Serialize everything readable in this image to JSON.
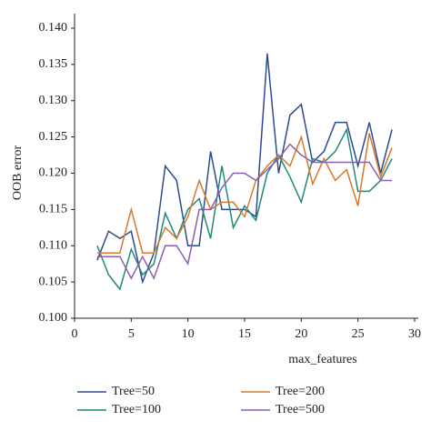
{
  "chart_data": {
    "type": "line",
    "xlabel": "max_features",
    "ylabel": "OOB error",
    "x": [
      2,
      3,
      4,
      5,
      6,
      7,
      8,
      9,
      10,
      11,
      12,
      13,
      14,
      15,
      16,
      17,
      18,
      19,
      20,
      21,
      22,
      23,
      24,
      25,
      26,
      27,
      28
    ],
    "series": [
      {
        "name": "Tree=50",
        "color": "#2e4a8f",
        "values": [
          0.108,
          0.112,
          0.111,
          0.112,
          0.105,
          0.109,
          0.121,
          0.119,
          0.11,
          0.11,
          0.123,
          0.115,
          0.115,
          0.115,
          0.114,
          0.1365,
          0.12,
          0.128,
          0.1295,
          0.1215,
          0.123,
          0.127,
          0.127,
          0.121,
          0.127,
          0.12,
          0.126
        ]
      },
      {
        "name": "Tree=100",
        "color": "#1f8a7a",
        "values": [
          0.11,
          0.106,
          0.104,
          0.1095,
          0.106,
          0.1075,
          0.1145,
          0.111,
          0.115,
          0.1165,
          0.111,
          0.121,
          0.1125,
          0.1155,
          0.1135,
          0.12,
          0.1225,
          0.1195,
          0.116,
          0.122,
          0.1215,
          0.123,
          0.126,
          0.1175,
          0.1175,
          0.119,
          0.122
        ]
      },
      {
        "name": "Tree=200",
        "color": "#d9782d",
        "values": [
          0.109,
          0.109,
          0.109,
          0.115,
          0.109,
          0.109,
          0.1125,
          0.111,
          0.114,
          0.119,
          0.115,
          0.116,
          0.116,
          0.114,
          0.119,
          0.121,
          0.1225,
          0.121,
          0.125,
          0.1185,
          0.122,
          0.119,
          0.1205,
          0.1155,
          0.1255,
          0.1195,
          0.1235
        ]
      },
      {
        "name": "Tree=500",
        "color": "#8a5fb0",
        "values": [
          0.1085,
          0.1085,
          0.1085,
          0.1055,
          0.1085,
          0.1055,
          0.11,
          0.11,
          0.1075,
          0.115,
          0.115,
          0.118,
          0.12,
          0.12,
          0.119,
          0.1205,
          0.122,
          0.124,
          0.1225,
          0.1215,
          0.1215,
          0.1215,
          0.1215,
          0.1215,
          0.1215,
          0.119,
          0.119
        ]
      }
    ],
    "xlim": [
      0,
      30
    ],
    "xticks": [
      0,
      5,
      10,
      15,
      20,
      25,
      30
    ],
    "ylim": [
      0.1,
      0.142
    ],
    "yticks": [
      {
        "value": 0.1,
        "label": "0.100"
      },
      {
        "value": 0.105,
        "label": "0.105"
      },
      {
        "value": 0.11,
        "label": "0.110"
      },
      {
        "value": 0.115,
        "label": "0.115"
      },
      {
        "value": 0.12,
        "label": "0.120"
      },
      {
        "value": 0.125,
        "label": "0.125"
      },
      {
        "value": 0.13,
        "label": "0.130"
      },
      {
        "value": 0.135,
        "label": "0.135"
      },
      {
        "value": 0.14,
        "label": "0.140"
      }
    ],
    "legend": "bottom"
  }
}
